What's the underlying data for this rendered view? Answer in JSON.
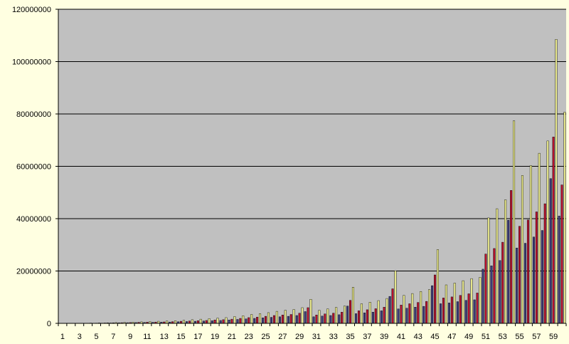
{
  "colors": {
    "page_background": "#ffffe1",
    "plot_background": "#c0c0c0",
    "gridline": "#000000"
  },
  "chart_data": {
    "type": "bar",
    "title": "",
    "xlabel": "",
    "ylabel": "",
    "ylim": [
      0,
      120000000
    ],
    "y_ticks": [
      0,
      20000000,
      40000000,
      60000000,
      80000000,
      100000000,
      120000000
    ],
    "y_tick_labels": [
      "0",
      "20000000",
      "40000000",
      "60000000",
      "80000000",
      "100000000",
      "120000000"
    ],
    "grid": true,
    "legend": "none",
    "categories": [
      "1",
      "2",
      "3",
      "4",
      "5",
      "6",
      "7",
      "8",
      "9",
      "10",
      "11",
      "12",
      "13",
      "14",
      "15",
      "16",
      "17",
      "18",
      "19",
      "20",
      "21",
      "22",
      "23",
      "24",
      "25",
      "26",
      "27",
      "28",
      "29",
      "30",
      "31",
      "32",
      "33",
      "34",
      "35",
      "36",
      "37",
      "38",
      "39",
      "40",
      "41",
      "42",
      "43",
      "44",
      "45",
      "46",
      "47",
      "48",
      "49",
      "50",
      "51",
      "52",
      "53",
      "54",
      "55",
      "56",
      "57",
      "58",
      "59",
      "60"
    ],
    "x_tick_labels": [
      "1",
      "",
      "3",
      "",
      "5",
      "",
      "7",
      "",
      "9",
      "",
      "11",
      "",
      "13",
      "",
      "15",
      "",
      "17",
      "",
      "19",
      "",
      "21",
      "",
      "23",
      "",
      "25",
      "",
      "27",
      "",
      "29",
      "",
      "31",
      "",
      "33",
      "",
      "35",
      "",
      "37",
      "",
      "39",
      "",
      "41",
      "",
      "43",
      "",
      "45",
      "",
      "47",
      "",
      "49",
      "",
      "51",
      "",
      "53",
      "",
      "55",
      "",
      "57",
      "",
      "59",
      ""
    ],
    "series": [
      {
        "color": "#3a3a78",
        "values": [
          10000,
          20000,
          40000,
          60000,
          80000,
          100000,
          150000,
          200000,
          250000,
          300000,
          350000,
          400000,
          450000,
          500000,
          600000,
          700000,
          800000,
          900000,
          1000000,
          1100000,
          1300000,
          1500000,
          1700000,
          1900000,
          2100000,
          2300000,
          2500000,
          2700000,
          3000000,
          4500000,
          2500000,
          2800000,
          3000000,
          3300000,
          6600000,
          3700000,
          4000000,
          4300000,
          4800000,
          10300000,
          5500000,
          5800000,
          6200000,
          6500000,
          14400000,
          7500000,
          7800000,
          8300000,
          8800000,
          9000000,
          20700000,
          22000000,
          24000000,
          39400000,
          28800000,
          30600000,
          33000000,
          35500000,
          55300000,
          41000000
        ]
      },
      {
        "color": "#b8102c",
        "values": [
          10000,
          20000,
          50000,
          80000,
          100000,
          150000,
          200000,
          250000,
          300000,
          400000,
          450000,
          500000,
          550000,
          650000,
          800000,
          900000,
          1000000,
          1100000,
          1300000,
          1400000,
          1600000,
          1900000,
          2200000,
          2400000,
          2700000,
          3000000,
          3200000,
          3400000,
          3900000,
          6000000,
          3200000,
          3600000,
          3900000,
          4300000,
          8800000,
          4800000,
          5200000,
          5600000,
          6200000,
          13200000,
          7000000,
          7500000,
          8000000,
          8400000,
          18500000,
          9700000,
          10100000,
          10700000,
          11300000,
          11600000,
          26500000,
          28600000,
          31000000,
          50800000,
          37100000,
          39500000,
          42600000,
          45700000,
          71200000,
          52900000
        ]
      },
      {
        "color": "#e6e68a",
        "values": [
          20000,
          40000,
          80000,
          120000,
          160000,
          200000,
          300000,
          380000,
          480000,
          580000,
          680000,
          800000,
          900000,
          1000000,
          1200000,
          1400000,
          1600000,
          1800000,
          2000000,
          2200000,
          2600000,
          2900000,
          3400000,
          3700000,
          4100000,
          4600000,
          5000000,
          5300000,
          6000000,
          9200000,
          5000000,
          5500000,
          6100000,
          6600000,
          13800000,
          7500000,
          8100000,
          8700000,
          9500000,
          20100000,
          10700000,
          11400000,
          12200000,
          12900000,
          28200000,
          14700000,
          15400000,
          16300000,
          17100000,
          17600000,
          40300000,
          43800000,
          47200000,
          77400000,
          56500000,
          60300000,
          65000000,
          69700000,
          108500000,
          80700000
        ]
      }
    ]
  }
}
